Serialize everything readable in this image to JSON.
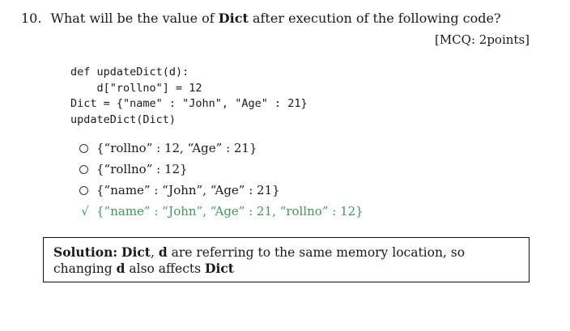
{
  "question": {
    "number": "10.",
    "part1": "What will be the value of",
    "keyword": "Dict",
    "part2": "after execution of the following code?"
  },
  "marks": "[MCQ: 2points]",
  "code": {
    "lines": [
      "def updateDict(d):",
      "    d[\"rollno\"] = 12",
      "Dict = {\"name\" : \"John\", \"Age\" : 21}",
      "updateDict(Dict)"
    ]
  },
  "options": [
    {
      "text": "{“rollno” : 12, “Age” : 21}",
      "correct": false
    },
    {
      "text": "{“rollno” : 12}",
      "correct": false
    },
    {
      "text": "{“name” : “John”, “Age” : 21}",
      "correct": false
    },
    {
      "text": "{“name” : “John”, “Age” : 21, “rollno” : 12}",
      "correct": true
    }
  ],
  "check_mark": "√",
  "solution": {
    "label": "Solution:",
    "term1": "Dict",
    "sep": ",",
    "term2": "d",
    "text1": "are referring to the same memory location, so changing",
    "term3": "d",
    "text2": "also affects",
    "term4": "Dict"
  },
  "colors": {
    "correct": "#3a9a5a",
    "text": "#1a1a1a",
    "border": "#111111"
  }
}
